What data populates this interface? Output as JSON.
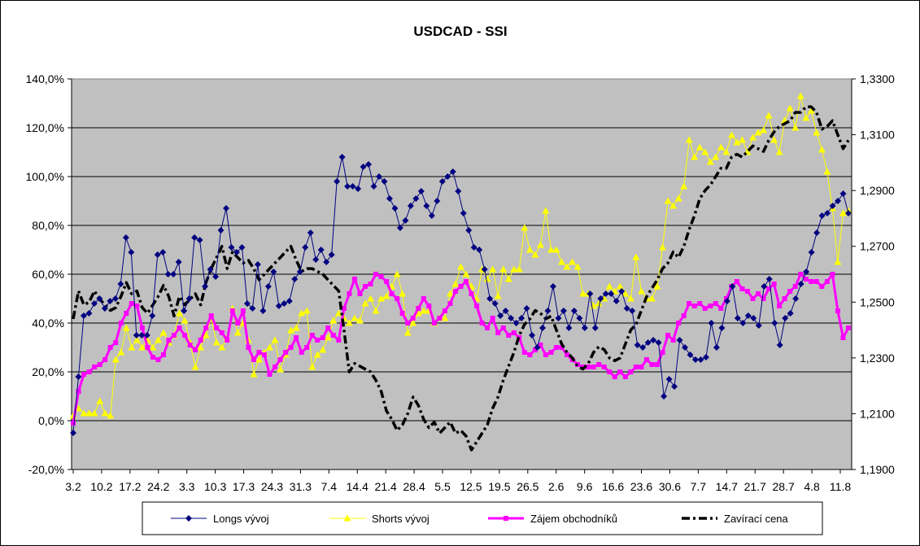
{
  "chart_data": {
    "type": "line",
    "title": "USDCAD - SSI",
    "colors": {
      "plot_bg": "#c0c0c0",
      "longs": "#000080",
      "shorts": "#ffff00",
      "interest": "#ff00ff",
      "close": "#000000"
    },
    "x_tick_labels": [
      "3.2",
      "10.2",
      "17.2",
      "24.2",
      "3.3",
      "10.3",
      "17.3",
      "24.3",
      "31.3",
      "7.4",
      "14.4",
      "21.4",
      "28.4",
      "5.5",
      "12.5",
      "19.5",
      "26.5",
      "2.6",
      "9.6",
      "16.6",
      "23.6",
      "30.6",
      "7.7",
      "14.7",
      "21.7",
      "28.7",
      "4.8",
      "11.8"
    ],
    "y_left": {
      "ticks": [
        "-20,0%",
        "0,0%",
        "20,0%",
        "40,0%",
        "60,0%",
        "80,0%",
        "100,0%",
        "120,0%",
        "140,0%"
      ],
      "range": [
        -20,
        140
      ],
      "unit": "percent"
    },
    "y_right": {
      "ticks": [
        "1,1900",
        "1,2100",
        "1,2300",
        "1,2500",
        "1,2700",
        "1,2900",
        "1,3100",
        "1,3300"
      ],
      "range": [
        1.19,
        1.33
      ]
    },
    "grid": true,
    "legend": {
      "position": "bottom",
      "entries": [
        "Longs vývoj",
        "Shorts vývoj",
        "Zájem obchodníků",
        "Zavírací cena"
      ]
    },
    "series": [
      {
        "name": "Longs vývoj",
        "axis": "left",
        "marker": "diamond",
        "values": [
          -5,
          18,
          43,
          44,
          48,
          50,
          46,
          49,
          50,
          56,
          75,
          69,
          35,
          35,
          35,
          43,
          68,
          69,
          60,
          60,
          65,
          45,
          50,
          75,
          74,
          55,
          62,
          59,
          78,
          87,
          71,
          69,
          71,
          48,
          46,
          64,
          45,
          55,
          61,
          47,
          48,
          49,
          58,
          61,
          71,
          77,
          66,
          70,
          65,
          68,
          98,
          108,
          96,
          96,
          95,
          104,
          105,
          96,
          100,
          98,
          91,
          87,
          79,
          82,
          88,
          91,
          94,
          88,
          84,
          90,
          98,
          100,
          102,
          94,
          85,
          78,
          71,
          70,
          62,
          50,
          48,
          43,
          45,
          42,
          40,
          42,
          46,
          35,
          30,
          38,
          45,
          55,
          42,
          45,
          38,
          45,
          42,
          38,
          52,
          38,
          50,
          52,
          52,
          49,
          53,
          46,
          45,
          31,
          30,
          32,
          33,
          32,
          10,
          17,
          14,
          33,
          30,
          27,
          25,
          25,
          26,
          40,
          30,
          38,
          49,
          55,
          42,
          40,
          43,
          42,
          39,
          55,
          58,
          40,
          31,
          42,
          44,
          50,
          56,
          61,
          69,
          77,
          84,
          85,
          88,
          90,
          93,
          85
        ]
      },
      {
        "name": "Shorts vývoj",
        "axis": "left",
        "marker": "triangle",
        "values": [
          2,
          5,
          3,
          3,
          3,
          8,
          3,
          2,
          25,
          28,
          38,
          30,
          33,
          30,
          33,
          30,
          33,
          36,
          32,
          35,
          44,
          41,
          32,
          22,
          30,
          35,
          42,
          32,
          30,
          34,
          46,
          36,
          40,
          33,
          19,
          25,
          28,
          30,
          33,
          21,
          27,
          37,
          38,
          44,
          45,
          22,
          27,
          29,
          34,
          41,
          44,
          42,
          40,
          42,
          41,
          48,
          50,
          45,
          50,
          51,
          55,
          60,
          52,
          36,
          40,
          44,
          45,
          45,
          40,
          42,
          42,
          52,
          56,
          63,
          60,
          55,
          50,
          62,
          58,
          62,
          51,
          62,
          58,
          62,
          62,
          79,
          70,
          68,
          72,
          86,
          70,
          70,
          65,
          63,
          65,
          63,
          52,
          52,
          47,
          48,
          50,
          55,
          53,
          55,
          52,
          50,
          67,
          53,
          50,
          50,
          55,
          71,
          90,
          88,
          91,
          96,
          115,
          108,
          112,
          110,
          106,
          108,
          112,
          110,
          117,
          114,
          115,
          110,
          116,
          118,
          119,
          125,
          115,
          110,
          123,
          128,
          120,
          133,
          124,
          127,
          118,
          111,
          102,
          87,
          65,
          85,
          86
        ]
      },
      {
        "name": "Zájem obchodníků",
        "axis": "left",
        "marker": "square",
        "values": [
          -1,
          12,
          19,
          20,
          22,
          23,
          25,
          30,
          32,
          40,
          44,
          48,
          47,
          38,
          30,
          26,
          25,
          27,
          33,
          35,
          38,
          35,
          31,
          29,
          33,
          38,
          43,
          38,
          36,
          33,
          45,
          40,
          45,
          30,
          25,
          28,
          27,
          19,
          22,
          25,
          28,
          30,
          34,
          28,
          30,
          35,
          33,
          34,
          38,
          35,
          33,
          46,
          52,
          58,
          52,
          55,
          56,
          60,
          59,
          57,
          52,
          50,
          44,
          40,
          42,
          46,
          50,
          47,
          40,
          42,
          45,
          48,
          53,
          55,
          57,
          52,
          47,
          40,
          38,
          42,
          36,
          38,
          35,
          36,
          34,
          28,
          27,
          29,
          31,
          27,
          28,
          30,
          30,
          27,
          25,
          23,
          22,
          22,
          22,
          23,
          22,
          20,
          18,
          20,
          18,
          20,
          22,
          22,
          25,
          23,
          23,
          28,
          35,
          33,
          40,
          43,
          48,
          47,
          48,
          46,
          47,
          48,
          46,
          50,
          55,
          57,
          54,
          53,
          50,
          52,
          50,
          54,
          56,
          47,
          50,
          53,
          55,
          60,
          58,
          57,
          57,
          55,
          57,
          60,
          45,
          34,
          38
        ]
      },
      {
        "name": "Zavírací cena",
        "axis": "right",
        "marker": "dash",
        "values": [
          1.244,
          1.254,
          1.249,
          1.25,
          1.254,
          1.251,
          1.249,
          1.247,
          1.248,
          1.252,
          1.257,
          1.253,
          1.254,
          1.248,
          1.246,
          1.249,
          1.252,
          1.256,
          1.252,
          1.245,
          1.252,
          1.249,
          1.251,
          1.253,
          1.249,
          1.257,
          1.262,
          1.266,
          1.27,
          1.262,
          1.268,
          1.266,
          1.264,
          1.265,
          1.262,
          1.258,
          1.26,
          1.262,
          1.264,
          1.266,
          1.268,
          1.27,
          1.265,
          1.261,
          1.262,
          1.262,
          1.261,
          1.26,
          1.258,
          1.256,
          1.254,
          1.24,
          1.225,
          1.228,
          1.227,
          1.226,
          1.225,
          1.222,
          1.218,
          1.211,
          1.208,
          1.204,
          1.206,
          1.21,
          1.216,
          1.213,
          1.208,
          1.205,
          1.207,
          1.203,
          1.205,
          1.207,
          1.203,
          1.204,
          1.202,
          1.197,
          1.2,
          1.203,
          1.206,
          1.212,
          1.216,
          1.222,
          1.227,
          1.232,
          1.238,
          1.242,
          1.244,
          1.247,
          1.246,
          1.244,
          1.245,
          1.24,
          1.235,
          1.232,
          1.23,
          1.227,
          1.226,
          1.228,
          1.232,
          1.234,
          1.233,
          1.23,
          1.229,
          1.23,
          1.235,
          1.24,
          1.242,
          1.247,
          1.252,
          1.255,
          1.258,
          1.262,
          1.264,
          1.268,
          1.266,
          1.27,
          1.276,
          1.281,
          1.287,
          1.29,
          1.292,
          1.295,
          1.298,
          1.298,
          1.302,
          1.303,
          1.302,
          1.304,
          1.306,
          1.305,
          1.304,
          1.308,
          1.311,
          1.313,
          1.314,
          1.315,
          1.318,
          1.318,
          1.32,
          1.32,
          1.318,
          1.312,
          1.313,
          1.315,
          1.31,
          1.305,
          1.308
        ]
      }
    ]
  }
}
